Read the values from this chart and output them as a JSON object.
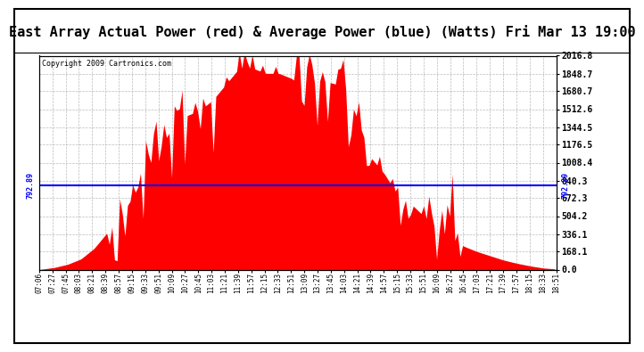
{
  "title": "East Array Actual Power (red) & Average Power (blue) (Watts) Fri Mar 13 19:00",
  "copyright": "Copyright 2009 Cartronics.com",
  "average_power": 792.89,
  "ylim_min": 0.0,
  "ylim_max": 2016.8,
  "ytick_values": [
    0.0,
    168.1,
    336.1,
    504.2,
    672.3,
    840.3,
    1008.4,
    1176.5,
    1344.5,
    1512.6,
    1680.7,
    1848.7,
    2016.8
  ],
  "ytick_labels": [
    "0.0",
    "168.1",
    "336.1",
    "504.2",
    "672.3",
    "840.3",
    "1008.4",
    "1176.5",
    "1344.5",
    "1512.6",
    "1680.7",
    "1848.7",
    "2016.8"
  ],
  "xlabels": [
    "07:06",
    "07:27",
    "07:45",
    "08:03",
    "08:21",
    "08:39",
    "08:57",
    "09:15",
    "09:33",
    "09:51",
    "10:09",
    "10:27",
    "10:45",
    "11:03",
    "11:21",
    "11:39",
    "11:57",
    "12:15",
    "12:33",
    "12:51",
    "13:09",
    "13:27",
    "13:45",
    "14:03",
    "14:21",
    "14:39",
    "14:57",
    "15:15",
    "15:33",
    "15:51",
    "16:09",
    "16:27",
    "16:45",
    "17:03",
    "17:21",
    "17:39",
    "17:57",
    "18:15",
    "18:33",
    "18:51"
  ],
  "bar_color": "#FF0000",
  "line_color": "#0000FF",
  "bg_color": "#FFFFFF",
  "grid_color": "#AAAAAA",
  "avg_label": "792.89",
  "n_points": 200,
  "seed": 7,
  "title_fontsize": 11,
  "copyright_fontsize": 6,
  "ylabel_fontsize": 7,
  "xlabel_fontsize": 5.5
}
